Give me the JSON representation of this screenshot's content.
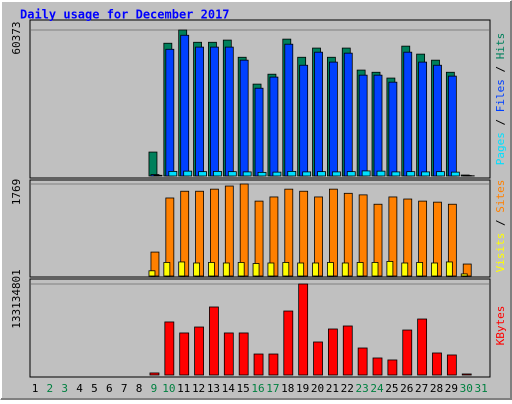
{
  "chart_data": [
    {
      "type": "bar",
      "title": "Daily usage for December 2017",
      "legend_separator": " / ",
      "ylim": [
        0,
        60373
      ],
      "yticks": [
        60373
      ],
      "series": [
        {
          "name": "Hits",
          "color": "#00805c",
          "values": [
            0,
            0,
            0,
            0,
            0,
            0,
            0,
            0,
            9900,
            54900,
            60373,
            55300,
            55300,
            56200,
            49100,
            38000,
            42100,
            56600,
            49100,
            52900,
            49100,
            52900,
            43800,
            42900,
            40500,
            53700,
            50400,
            47900,
            42900,
            400,
            0
          ]
        },
        {
          "name": "Files",
          "color": "#0040ff",
          "values": [
            0,
            0,
            0,
            0,
            0,
            0,
            0,
            0,
            600,
            52400,
            58200,
            53300,
            53300,
            53300,
            47900,
            36300,
            40900,
            54500,
            45800,
            51200,
            47100,
            50800,
            41700,
            41700,
            38800,
            51200,
            47100,
            45800,
            41300,
            200,
            0
          ]
        },
        {
          "name": "Pages",
          "color": "#00e0ff",
          "values": [
            0,
            0,
            0,
            0,
            0,
            0,
            0,
            0,
            300,
            1900,
            2000,
            1800,
            1900,
            1800,
            1700,
            1500,
            1600,
            1900,
            1700,
            1800,
            1700,
            1800,
            2100,
            2000,
            1700,
            1800,
            1700,
            1800,
            1600,
            100,
            0
          ]
        }
      ]
    },
    {
      "type": "bar",
      "legend_separator": " / ",
      "ylim": [
        0,
        1769
      ],
      "yticks": [
        1769
      ],
      "series": [
        {
          "name": "Sites",
          "color": "#ff8000",
          "values": [
            0,
            0,
            0,
            0,
            0,
            0,
            0,
            0,
            460,
            1500,
            1630,
            1630,
            1670,
            1730,
            1769,
            1440,
            1520,
            1670,
            1630,
            1520,
            1670,
            1590,
            1560,
            1380,
            1520,
            1480,
            1440,
            1420,
            1380,
            230,
            0
          ]
        },
        {
          "name": "Visits",
          "color": "#ffff00",
          "values": [
            0,
            0,
            0,
            0,
            0,
            0,
            0,
            0,
            100,
            260,
            270,
            250,
            260,
            250,
            260,
            240,
            250,
            260,
            250,
            250,
            260,
            250,
            260,
            260,
            280,
            250,
            260,
            250,
            270,
            40,
            0
          ]
        }
      ]
    },
    {
      "type": "bar",
      "ylim": [
        0,
        133134801
      ],
      "yticks": [
        133134801
      ],
      "categories": [
        "1",
        "2",
        "3",
        "4",
        "5",
        "6",
        "7",
        "8",
        "9",
        "10",
        "11",
        "12",
        "13",
        "14",
        "15",
        "16",
        "17",
        "18",
        "19",
        "20",
        "21",
        "22",
        "23",
        "24",
        "25",
        "26",
        "27",
        "28",
        "29",
        "30",
        "31"
      ],
      "category_colors": [
        "#000000",
        "#008040",
        "#008040",
        "#000000",
        "#000000",
        "#000000",
        "#000000",
        "#000000",
        "#008040",
        "#008040",
        "#000000",
        "#000000",
        "#000000",
        "#000000",
        "#000000",
        "#008040",
        "#008040",
        "#000000",
        "#000000",
        "#000000",
        "#000000",
        "#000000",
        "#008040",
        "#008040",
        "#000000",
        "#000000",
        "#000000",
        "#000000",
        "#000000",
        "#008040",
        "#008040"
      ],
      "series": [
        {
          "name": "KBytes",
          "color": "#ff0000",
          "values": [
            0,
            0,
            0,
            0,
            0,
            0,
            0,
            0,
            3000000,
            77600000,
            61500000,
            70200000,
            99500000,
            61500000,
            61500000,
            30700000,
            30700000,
            93600000,
            133134801,
            48300000,
            67300000,
            71700000,
            39500000,
            24900000,
            22000000,
            65800000,
            81900000,
            32200000,
            29300000,
            1500000,
            0
          ]
        }
      ]
    }
  ]
}
